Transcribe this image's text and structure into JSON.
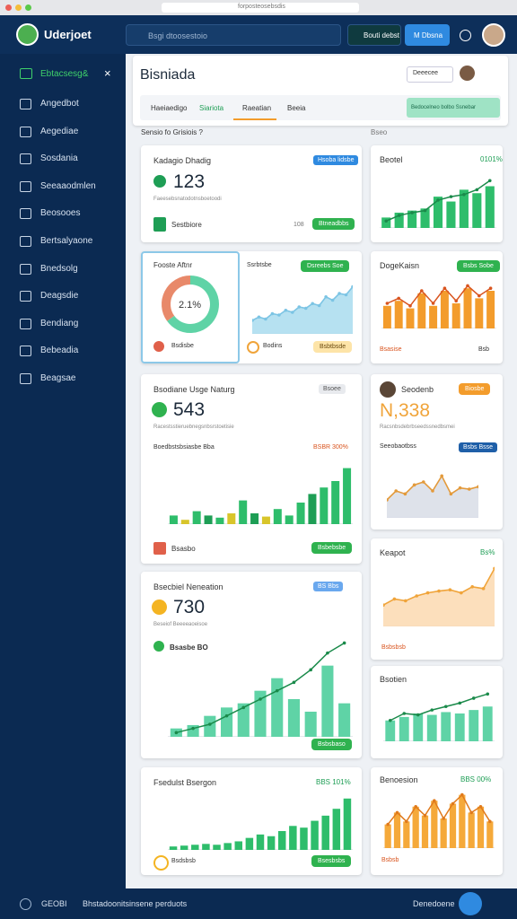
{
  "browser": {
    "url": "forposteosebsdis"
  },
  "topbar": {
    "brand": "Uderjoet",
    "search": "Bsgi dtoosestoio",
    "button1": "Bouti debst",
    "button2": "M Dbsna"
  },
  "sidebar": {
    "header": "Ebtacsesg&",
    "items": [
      "Angedbot",
      "Aegediae",
      "Sosdania",
      "Seeaaodmlen",
      "Beosooes",
      "Bertsalyaone",
      "Bnedsolg",
      "Deagsdie",
      "Bendiang",
      "Bebeadia",
      "Beagsae"
    ]
  },
  "header": {
    "title": "Bisniada",
    "button": "Deeecee",
    "tabs": [
      "Haeiaedigo",
      "Siariota",
      "Raeatian",
      "Beeia"
    ],
    "cta": "Bedocelneo bolbo Ssnebar",
    "section": "Sensio fo Grisiois ?",
    "section_right": "Bseo"
  },
  "cards": [
    {
      "title": "Kadagio Dhadig",
      "badge": "Hsoba lidsbe",
      "value": "123",
      "note": "Faeesebsnatodotnsboetoodi",
      "footer": "Sestbiore",
      "meta": "108",
      "button": "Btneadbbs"
    },
    {
      "title": "Beotel",
      "badge": "0101%",
      "chart": {
        "type": "bar-line",
        "values": [
          15,
          22,
          25,
          28,
          45,
          38,
          55,
          50,
          60
        ],
        "line": [
          10,
          18,
          22,
          25,
          40,
          45,
          48,
          55,
          68
        ],
        "color": "#2ebd6b",
        "line_color": "#1a8a4a",
        "ylim": [
          0,
          80
        ]
      }
    },
    {
      "title": "Fooste Aftnr",
      "center": "2.1%",
      "footer": "Bsdisbe",
      "chart": {
        "type": "donut",
        "values": [
          65,
          35
        ],
        "colors": [
          "#5fd3a6",
          "#e8896a"
        ]
      },
      "title2": "Ssrbtsbe",
      "badge2": "Dsreebs Soe",
      "chart2": {
        "type": "area",
        "values": [
          20,
          25,
          22,
          30,
          28,
          35,
          32,
          40,
          38,
          45,
          42,
          55,
          50,
          60,
          58,
          70
        ],
        "color": "#a9dcef",
        "line_color": "#7cc4e4",
        "ylim": [
          0,
          80
        ]
      },
      "footer2": "Bodins",
      "button2": "Bsbtbsde"
    },
    {
      "title": "DogeKaisn",
      "badge": "Bsbs Sobe",
      "footer": "Bsasise",
      "meta": "Bsb",
      "chart": {
        "type": "bar-line",
        "values": [
          45,
          55,
          40,
          70,
          45,
          75,
          50,
          80,
          60,
          75
        ],
        "line": [
          50,
          60,
          45,
          75,
          50,
          80,
          55,
          85,
          65,
          80
        ],
        "color": "#f39c2c",
        "line_color": "#d9541e",
        "ylim": [
          0,
          100
        ]
      }
    },
    {
      "title": "Bsodiane Usge Naturg",
      "badge": "Bsoee",
      "value": "543",
      "note": "Racestsstieruebnegsnbsrstoetisie",
      "legend": "Boedbstsbsiasbe Bba",
      "legend_right": "BSBR 300%",
      "footer": "Bsasbo",
      "button": "Bsbebsbe",
      "chart": {
        "type": "bar",
        "values": [
          8,
          4,
          12,
          8,
          6,
          10,
          22,
          10,
          7,
          14,
          8,
          20,
          28,
          34,
          40,
          52
        ],
        "colors": [
          "#2ebd6b",
          "#d8c52a",
          "#2ebd6b",
          "#1e9e55",
          "#2ebd6b",
          "#d8c52a",
          "#2ebd6b",
          "#1e9e55",
          "#d8c52a",
          "#2ebd6b",
          "#2ebd6b",
          "#2ebd6b",
          "#1e9e55",
          "#2ebd6b",
          "#2ebd6b",
          "#2ebd6b"
        ],
        "ylim": [
          0,
          60
        ]
      }
    },
    {
      "title": "Seodenb",
      "badge": "Biosbe",
      "value": "N,338",
      "note": "Racsnbsdebrbseedssnedbsmei",
      "legend": "Seeobaotbss",
      "badge2": "Bsbs Bsse",
      "chart": {
        "type": "area",
        "values": [
          30,
          45,
          40,
          55,
          60,
          45,
          70,
          40,
          50,
          48,
          52
        ],
        "color": "#d8dde6",
        "line_color": "#e39a3b",
        "ylim": [
          0,
          90
        ]
      }
    },
    {
      "title": "Keapot",
      "badge": "Bs%",
      "footer": "Bsbsbsb",
      "chart": {
        "type": "area",
        "values": [
          35,
          45,
          42,
          50,
          55,
          58,
          60,
          55,
          65,
          62,
          95
        ],
        "color": "#fbd9b0",
        "line_color": "#f0a43a",
        "ylim": [
          0,
          100
        ]
      }
    },
    {
      "title": "Bsecbiel Neneation",
      "badge": "BS Bbs",
      "value": "730",
      "note": "Beseiof Beeeeaoeisoe",
      "legend": "Bsasbe BO",
      "button": "Bsbsbaso",
      "chart": {
        "type": "bar-line",
        "values": [
          10,
          14,
          25,
          35,
          40,
          55,
          70,
          45,
          30,
          85,
          40
        ],
        "line": [
          5,
          10,
          15,
          25,
          35,
          45,
          55,
          65,
          80,
          100,
          112
        ],
        "color": "#5fd3a6",
        "line_color": "#1a8a4a",
        "ylim": [
          0,
          120
        ]
      }
    },
    {
      "title": "Bsotien",
      "chart": {
        "type": "bar-line",
        "values": [
          30,
          35,
          40,
          38,
          42,
          40,
          45,
          50
        ],
        "line": [
          30,
          40,
          38,
          45,
          50,
          55,
          62,
          68
        ],
        "color": "#5fd3a6",
        "line_color": "#1a8a4a",
        "ylim": [
          0,
          80
        ]
      }
    },
    {
      "title": "Fsedulst Bsergon",
      "badge": "BBS 101%",
      "footer": "Bsdsbsb",
      "button": "Bsesbsbs",
      "chart": {
        "type": "bar",
        "values": [
          4,
          5,
          6,
          7,
          6,
          8,
          10,
          14,
          18,
          16,
          22,
          28,
          26,
          34,
          40,
          48,
          60
        ],
        "color": "#2ebd6b",
        "ylim": [
          0,
          65
        ]
      }
    },
    {
      "title": "Benoesion",
      "badge": "BBS 00%",
      "footer": "Bsbsb",
      "chart": {
        "type": "bar-line",
        "values": [
          40,
          60,
          45,
          70,
          55,
          80,
          50,
          75,
          90,
          60,
          70,
          45
        ],
        "line": [
          40,
          60,
          45,
          70,
          55,
          80,
          50,
          75,
          90,
          60,
          70,
          45
        ],
        "color": "#f5a93a",
        "line_color": "#e07a1c",
        "ylim": [
          0,
          100
        ]
      }
    }
  ],
  "footer": {
    "left": "GEOBI",
    "text": "Bhstadoonitsinsene perduots",
    "right": "Denedoene"
  }
}
